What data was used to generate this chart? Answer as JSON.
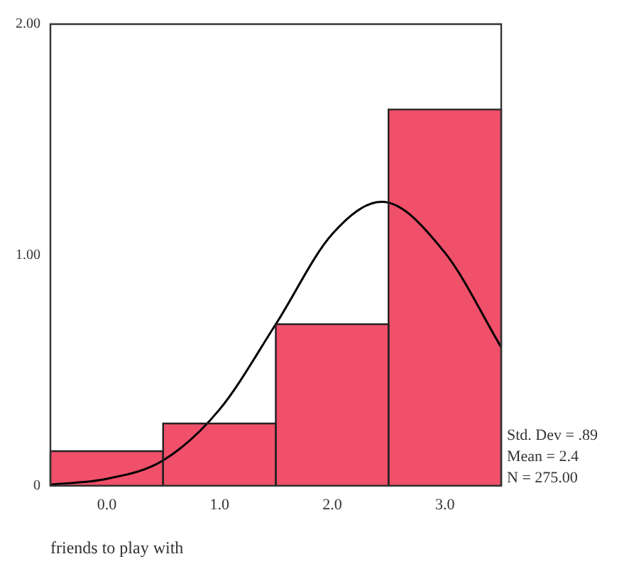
{
  "chart_data": {
    "type": "histogram",
    "xlabel": "friends to play with",
    "bins": [
      -0.5,
      0.5,
      1.5,
      2.5,
      3.5
    ],
    "values": [
      0.15,
      0.27,
      0.7,
      1.63
    ],
    "color": "#f0506a",
    "series": [
      {
        "type": "line",
        "color": "#000000",
        "x": [
          -0.5,
          0,
          0.5,
          1,
          1.5,
          2,
          2.44,
          3,
          3.5
        ],
        "values": [
          0.005,
          0.03,
          0.11,
          0.33,
          0.7,
          1.09,
          1.23,
          1.01,
          0.6
        ]
      }
    ],
    "xlim": [
      -0.5,
      3.5
    ],
    "xticks": [
      {
        "value": 0,
        "label": "0.0"
      },
      {
        "value": 1,
        "label": "1.0"
      },
      {
        "value": 2,
        "label": "2.0"
      },
      {
        "value": 3,
        "label": "3.0"
      }
    ],
    "ylim": [
      0,
      2
    ],
    "yticks": [
      0,
      {
        "value": 1,
        "label": "1.00"
      },
      {
        "value": 2,
        "label": "2.00"
      }
    ],
    "grid": false,
    "legend": false,
    "marker": "none",
    "line_style": "solid",
    "annotations": [
      "Std. Dev = .89",
      "Mean = 2.4",
      "N = 275.00"
    ]
  }
}
